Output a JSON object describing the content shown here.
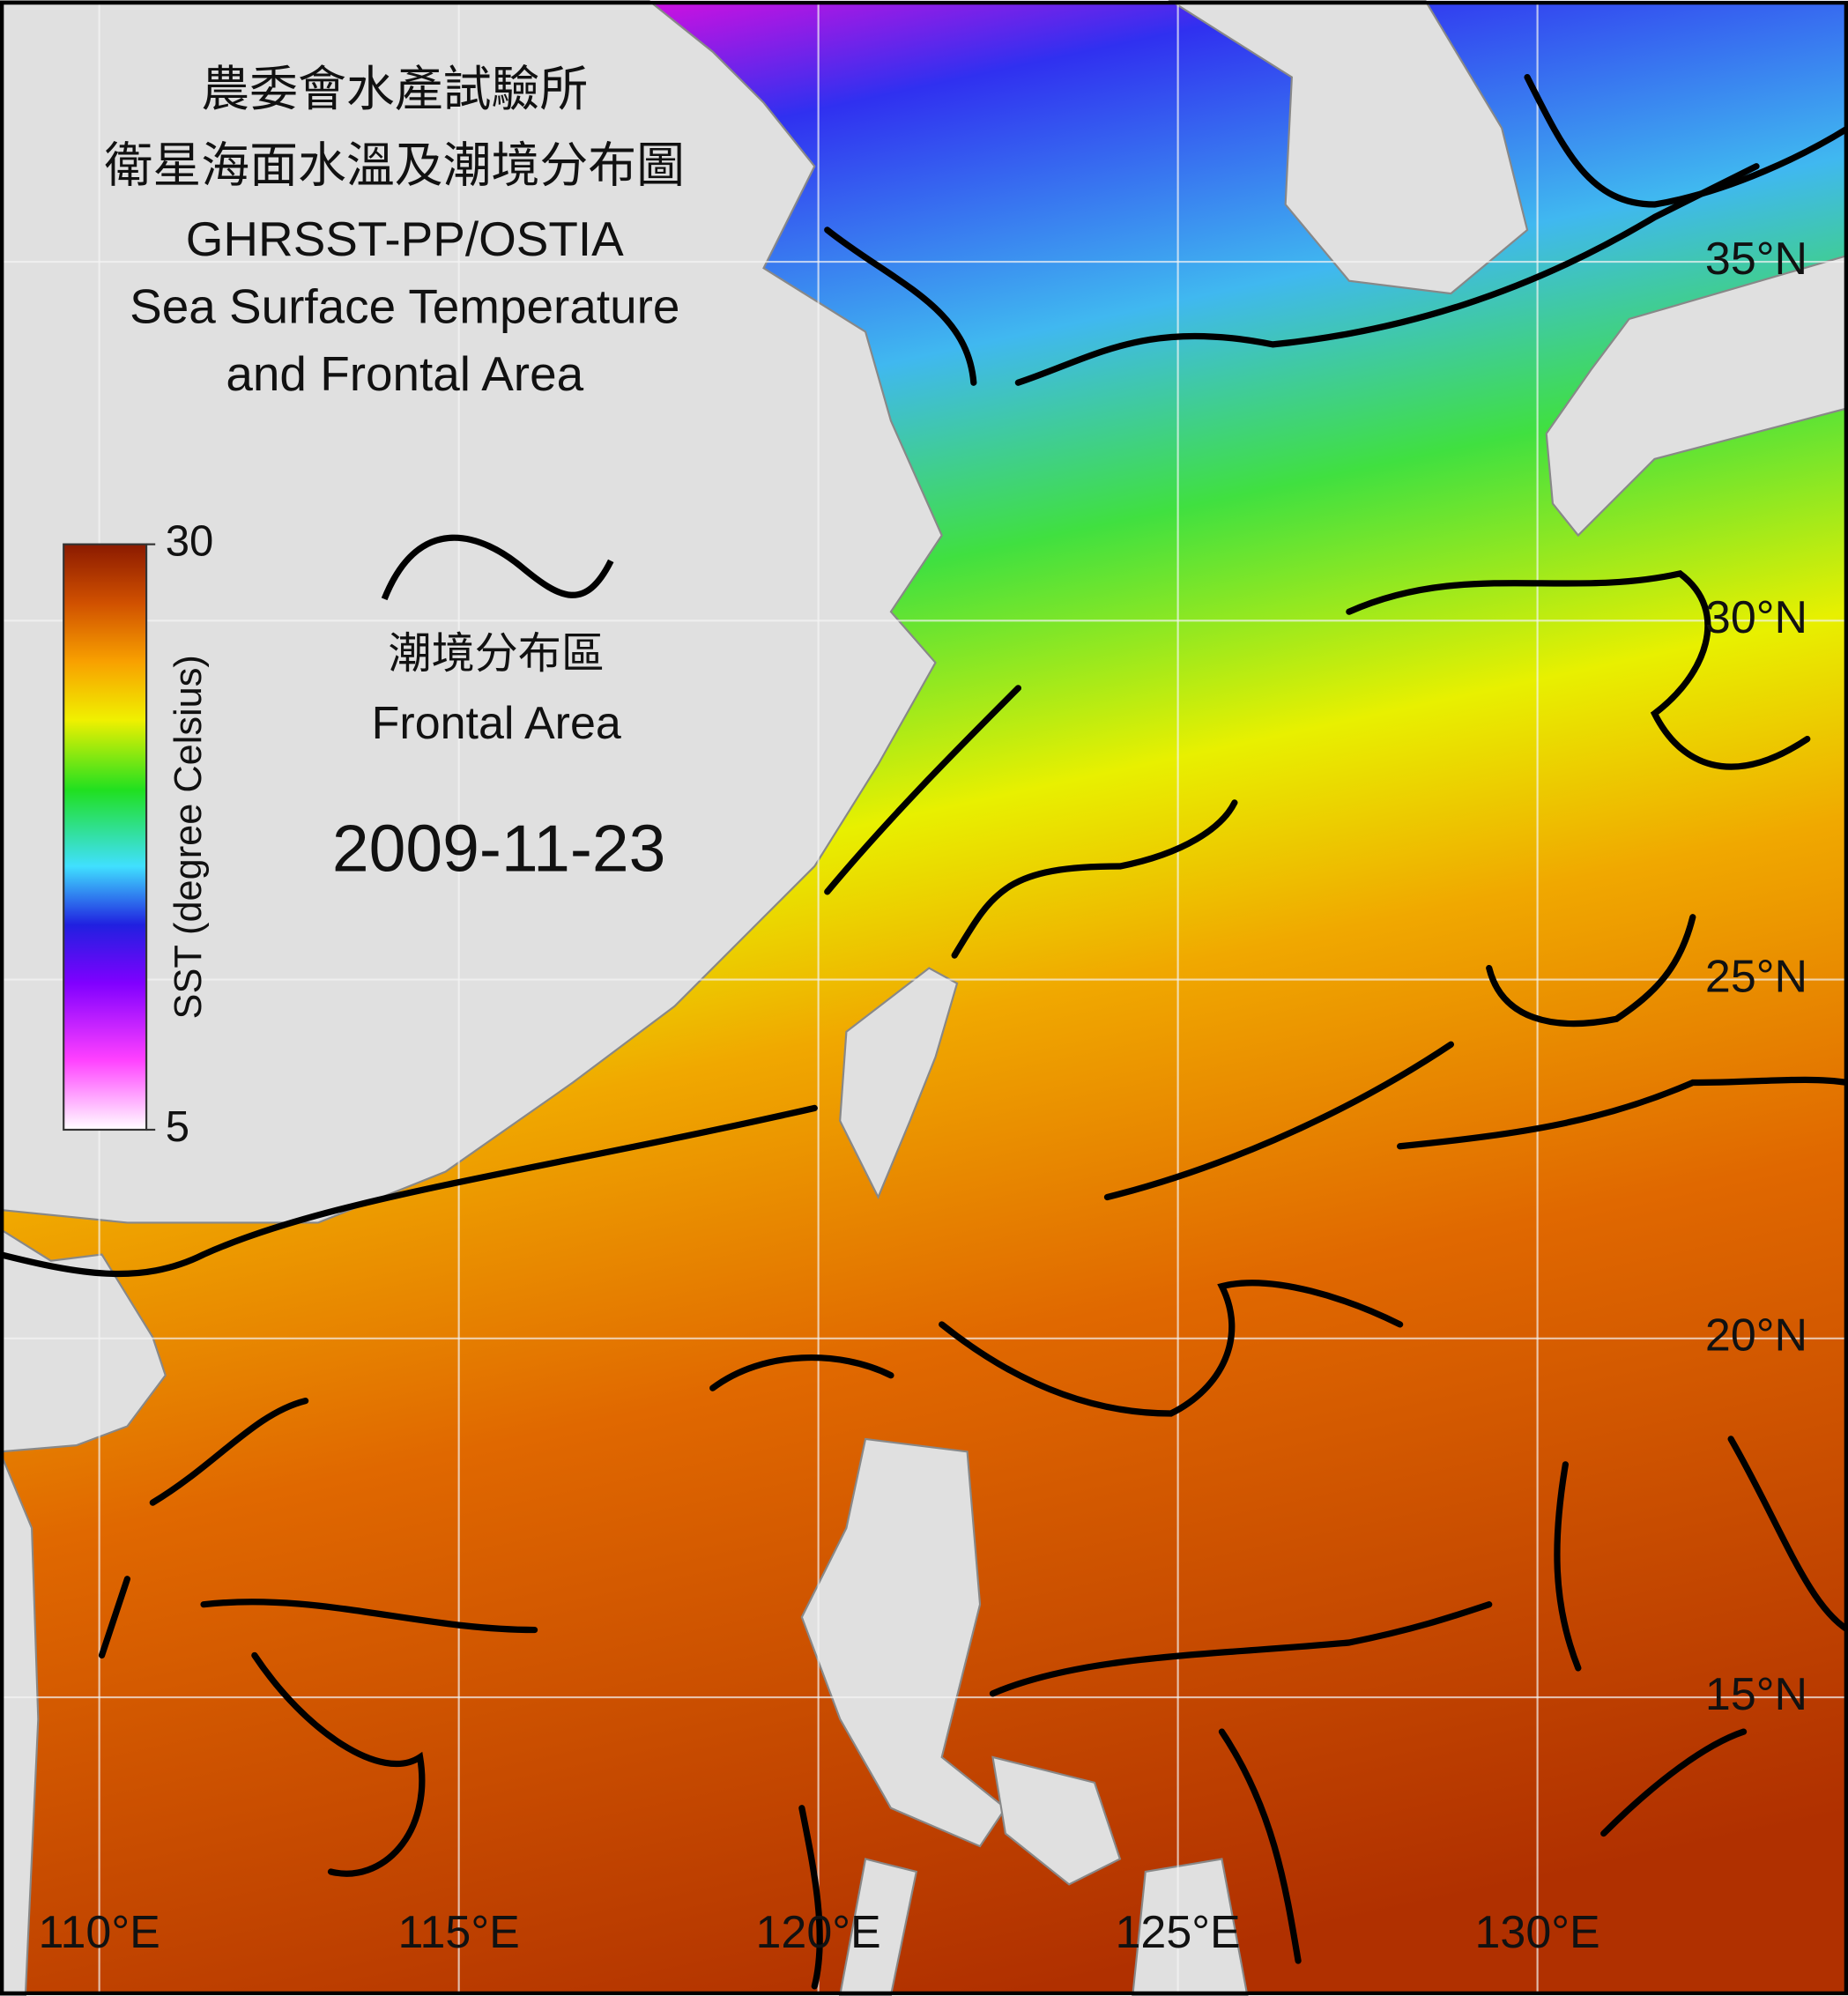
{
  "header": {
    "title_zh": "農委會水產試驗所",
    "subtitle_zh": "衛星海面水溫及潮境分布圖",
    "product": "GHRSST-PP/OSTIA",
    "title_en_1": "Sea Surface Temperature",
    "title_en_2": "and Frontal Area"
  },
  "colorbar": {
    "label": "SST (degree Celsius)",
    "min": 5,
    "max": 30
  },
  "legend": {
    "label_zh": "潮境分布區",
    "label_en": "Frontal Area"
  },
  "date": "2009-11-23",
  "map": {
    "lon_ticks": [
      {
        "value": 110,
        "label": "110°E"
      },
      {
        "value": 115,
        "label": "115°E"
      },
      {
        "value": 120,
        "label": "120°E"
      },
      {
        "value": 125,
        "label": "125°E"
      },
      {
        "value": 130,
        "label": "130°E"
      }
    ],
    "lat_ticks": [
      {
        "value": 35,
        "label": "35°N"
      },
      {
        "value": 30,
        "label": "30°N"
      },
      {
        "value": 25,
        "label": "25°N"
      },
      {
        "value": 20,
        "label": "20°N"
      },
      {
        "value": 15,
        "label": "15°N"
      }
    ]
  }
}
